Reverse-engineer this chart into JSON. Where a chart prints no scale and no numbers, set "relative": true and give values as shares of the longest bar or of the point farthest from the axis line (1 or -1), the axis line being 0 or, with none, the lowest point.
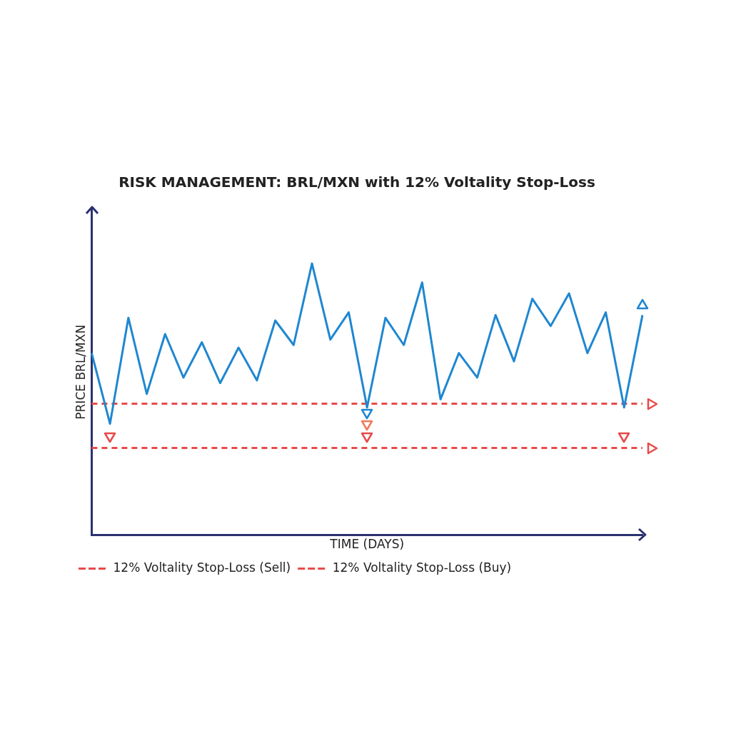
{
  "chart_data": {
    "type": "line",
    "title": "RISK MANAGEMENT: BRL/MXN with 12% Voltality Stop-Loss",
    "xlabel": "TIME (DAYS)",
    "ylabel": "PRICE BRL/MXN",
    "relative": true,
    "legend": "bottom left",
    "grid": false,
    "categories": [
      null,
      null,
      null,
      null,
      null,
      null,
      null,
      null,
      null,
      null,
      null,
      null,
      null,
      null,
      null,
      null,
      null,
      null,
      null,
      null,
      null,
      null,
      null,
      null,
      null,
      null,
      null,
      null,
      null,
      null,
      null
    ],
    "series": [
      {
        "color": "#1f87d0",
        "line_style": "solid",
        "values": [
          0.67,
          0.41,
          0.8,
          0.52,
          0.74,
          0.58,
          0.71,
          0.56,
          0.69,
          0.57,
          0.79,
          0.7,
          1.0,
          0.72,
          0.82,
          0.47,
          0.8,
          0.7,
          0.93,
          0.5,
          0.67,
          0.58,
          0.81,
          0.64,
          0.87,
          0.77,
          0.89,
          0.67,
          0.82,
          0.47,
          0.81
        ]
      },
      {
        "name": "12% Voltality Stop-Loss (Sell)",
        "color": "#e84a4a",
        "line_style": "dashed",
        "values": [
          0.484,
          0.484,
          0.484,
          0.484,
          0.484,
          0.484,
          0.484,
          0.484,
          0.484,
          0.484,
          0.484,
          0.484,
          0.484,
          0.484,
          0.484,
          0.484,
          0.484,
          0.484,
          0.484,
          0.484,
          0.484,
          0.484,
          0.484,
          0.484,
          0.484,
          0.484,
          0.484,
          0.484,
          0.484,
          0.484,
          0.484
        ]
      },
      {
        "name": "12% Voltality Stop-Loss (Buy)",
        "color": "#e84a4a",
        "line_style": "dashed",
        "values": [
          0.321,
          0.321,
          0.321,
          0.321,
          0.321,
          0.321,
          0.321,
          0.321,
          0.321,
          0.321,
          0.321,
          0.321,
          0.321,
          0.321,
          0.321,
          0.321,
          0.321,
          0.321,
          0.321,
          0.321,
          0.321,
          0.321,
          0.321,
          0.321,
          0.321,
          0.321,
          0.321,
          0.321,
          0.321,
          0.321,
          0.321
        ]
      }
    ]
  }
}
